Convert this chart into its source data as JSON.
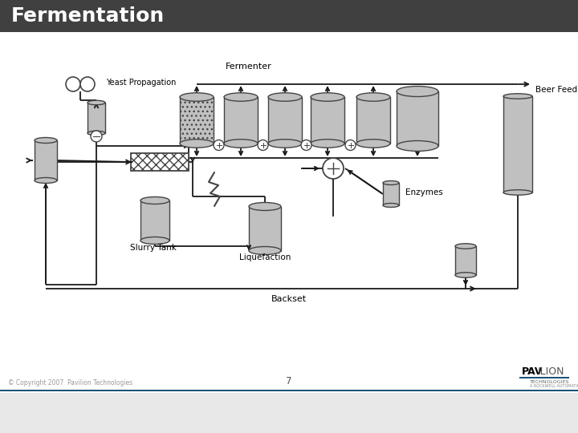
{
  "title": "Fermentation",
  "title_bg": "#404040",
  "title_color": "#ffffff",
  "title_fontsize": 18,
  "bg_color": "#ffffff",
  "slide_bg": "#e8e8e8",
  "footer_line_color": "#1a5276",
  "footer_text": "© Copyright 2007  Pavilion Technologies",
  "footer_page": "7",
  "labels": {
    "yeast_propagation": "Yeast Propagation",
    "fermenter": "Fermenter",
    "beer_feed": "Beer Feed",
    "enzymes": "Enzymes",
    "slurry_tank": "Slurry Tank",
    "liquefaction": "Liquefaction",
    "backset": "Backset"
  },
  "tank_color": "#c0c0c0",
  "tank_edge": "#444444",
  "arrow_color": "#1a1a1a",
  "line_color": "#1a1a1a"
}
